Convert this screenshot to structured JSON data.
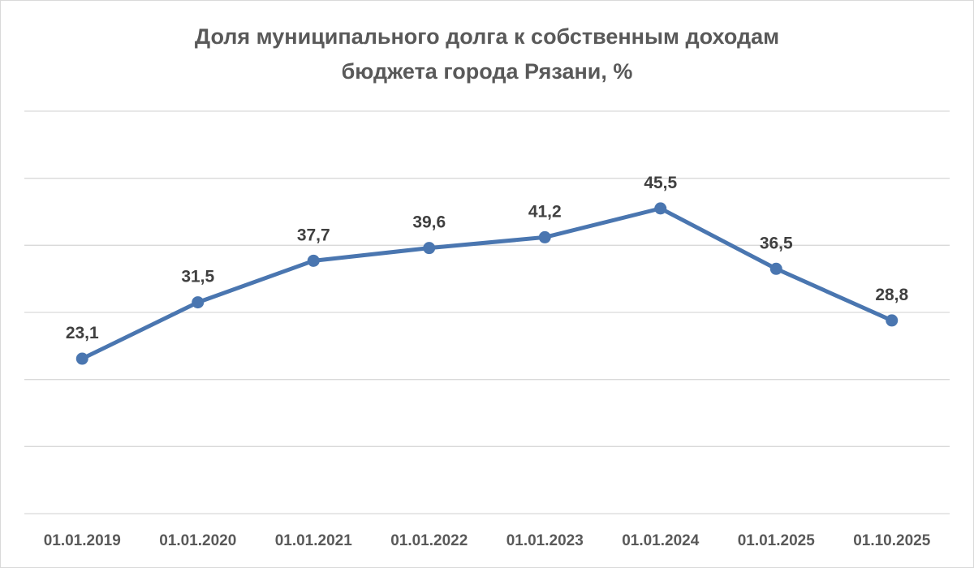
{
  "chart_data": {
    "type": "line",
    "title_lines": [
      "Доля муниципального долга к собственным доходам",
      "бюджета города Рязани, %"
    ],
    "categories": [
      "01.01.2019",
      "01.01.2020",
      "01.01.2021",
      "01.01.2022",
      "01.01.2023",
      "01.01.2024",
      "01.01.2025",
      "01.10.2025"
    ],
    "series": [
      {
        "values": [
          23.1,
          31.5,
          37.7,
          39.6,
          41.2,
          45.5,
          36.5,
          28.8
        ],
        "labels": [
          "23,1",
          "31,5",
          "37,7",
          "39,6",
          "41,2",
          "45,5",
          "36,5",
          "28,8"
        ],
        "color": "#4a76b0"
      }
    ],
    "xlabel": "",
    "ylabel": "",
    "ylim": [
      0,
      60
    ],
    "y_gridlines": [
      0,
      10,
      20,
      30,
      40,
      50,
      60
    ],
    "grid": true,
    "y_tick_labels_shown": false,
    "legend": "none",
    "gridline_color": "#d9d9d9"
  }
}
